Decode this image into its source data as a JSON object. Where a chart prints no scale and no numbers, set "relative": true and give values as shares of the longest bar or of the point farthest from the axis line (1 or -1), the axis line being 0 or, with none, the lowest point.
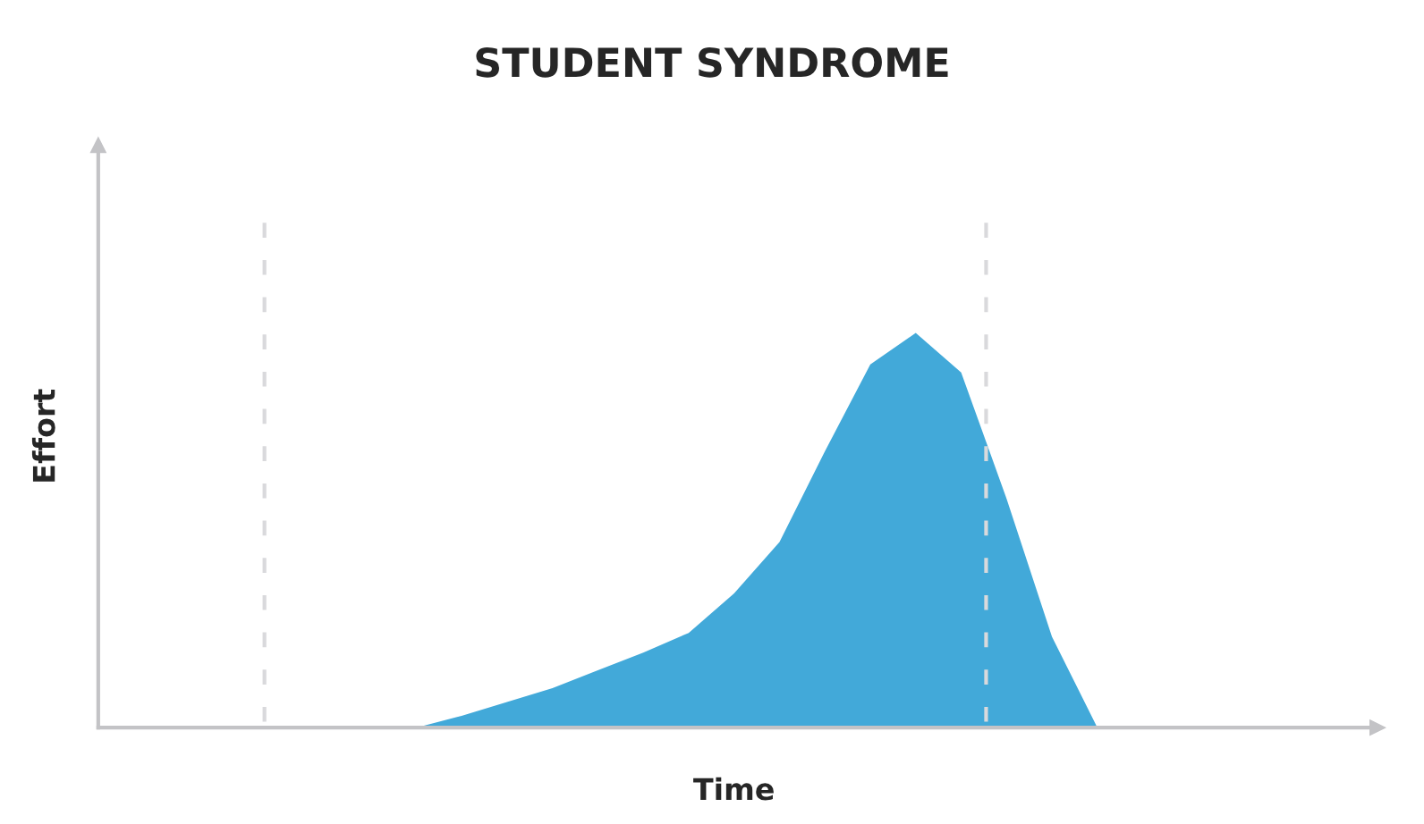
{
  "chart_data": {
    "type": "area",
    "title": "STUDENT SYNDROME",
    "xlabel": "Time",
    "ylabel": "Effort",
    "relative": true,
    "tick_labels": false,
    "categories": [
      null,
      null,
      null,
      null,
      null,
      null,
      null,
      null,
      null,
      null,
      null,
      null,
      null,
      null,
      null,
      null,
      null,
      null,
      null,
      null,
      null,
      null,
      null,
      null,
      null,
      null,
      null,
      null,
      null
    ],
    "values": [
      0,
      0,
      0,
      0,
      0,
      0,
      0,
      0,
      0.03,
      0.065,
      0.1,
      0.145,
      0.19,
      0.24,
      0.34,
      0.47,
      0.7,
      0.92,
      1.0,
      0.9,
      0.58,
      0.23,
      0,
      0,
      0,
      0,
      0,
      0,
      0
    ],
    "color": "#42a9d9"
  }
}
